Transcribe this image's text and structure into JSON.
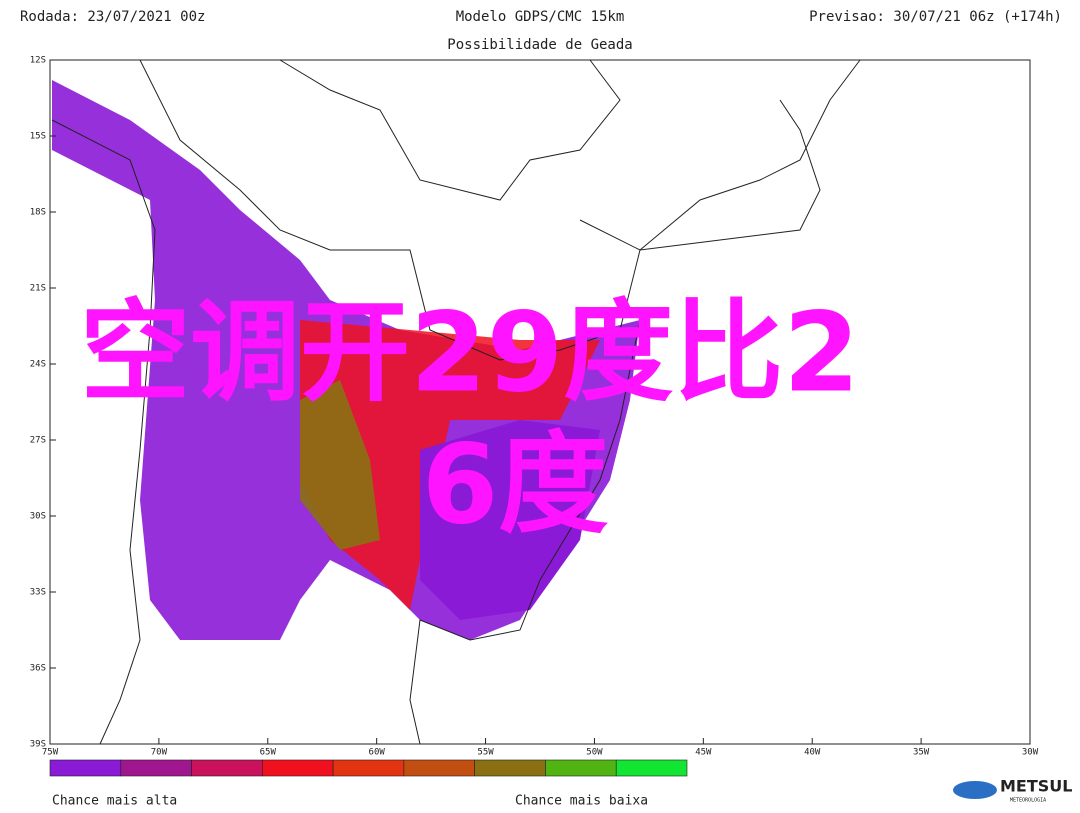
{
  "header": {
    "left": "Rodada: 23/07/2021 00z",
    "center": "Modelo GDPS/CMC 15km",
    "right": "Previsao: 30/07/21 06z (+174h)",
    "subtitle": "Possibilidade de Geada"
  },
  "map": {
    "lat_labels": [
      "12S",
      "15S",
      "18S",
      "21S",
      "24S",
      "27S",
      "30S",
      "33S",
      "36S",
      "39S"
    ],
    "lon_labels": [
      "75W",
      "70W",
      "65W",
      "60W",
      "55W",
      "50W",
      "45W",
      "40W",
      "35W",
      "30W"
    ]
  },
  "legend": {
    "colors": [
      "#8a1ad6",
      "#a0168e",
      "#c8125c",
      "#f0101e",
      "#e23412",
      "#c24e12",
      "#8a7012",
      "#52b412",
      "#12e632"
    ],
    "high_label": "Chance mais alta",
    "low_label": "Chance mais baixa"
  },
  "logo": {
    "name": "METSUL",
    "tagline": "METEOROLOGIA"
  },
  "overlay": {
    "lines": [
      "空调开29度比2",
      "6度"
    ]
  }
}
